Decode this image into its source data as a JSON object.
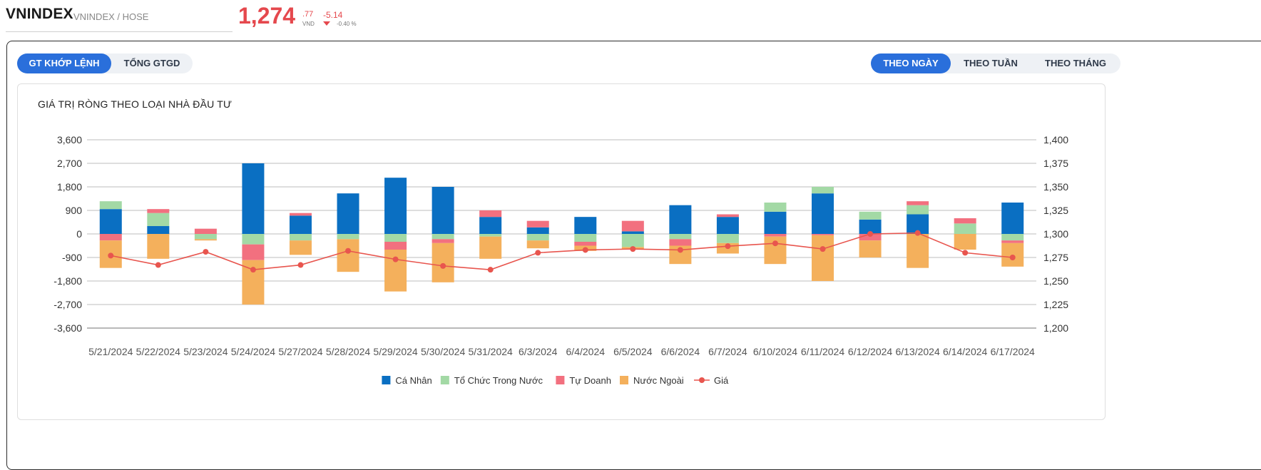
{
  "header": {
    "symbol": "VNINDEX",
    "subtitle": "VNINDEX / HOSE",
    "price_int": "1,274",
    "price_dec": ".77",
    "currency": "VND",
    "change": "-5.14",
    "change_pct": "-0.40 %",
    "colors": {
      "down": "#e5484d"
    }
  },
  "tabs_left": [
    {
      "label": "GT KHỚP LỆNH",
      "active": true
    },
    {
      "label": "TỔNG GTGD",
      "active": false
    }
  ],
  "tabs_right": [
    {
      "label": "THEO NGÀY",
      "active": true
    },
    {
      "label": "THEO TUẦN",
      "active": false
    },
    {
      "label": "THEO THÁNG",
      "active": false
    }
  ],
  "card": {
    "title": "GIÁ TRỊ RÒNG THEO LOẠI NHÀ ĐẦU TƯ"
  },
  "chart_data": {
    "type": "bar",
    "stacked": true,
    "title": "GIÁ TRỊ RÒNG THEO LOẠI NHÀ ĐẦU TƯ",
    "categories": [
      "5/21/2024",
      "5/22/2024",
      "5/23/2024",
      "5/24/2024",
      "5/27/2024",
      "5/28/2024",
      "5/29/2024",
      "5/30/2024",
      "5/31/2024",
      "6/3/2024",
      "6/4/2024",
      "6/5/2024",
      "6/6/2024",
      "6/7/2024",
      "6/10/2024",
      "6/11/2024",
      "6/12/2024",
      "6/13/2024",
      "6/14/2024",
      "6/17/2024"
    ],
    "y_left": {
      "ticks": [
        3600,
        2700,
        1800,
        900,
        0,
        -900,
        -1800,
        -2700,
        -3600
      ],
      "tick_labels": [
        "3,600",
        "2,700",
        "1,800",
        "900",
        "0",
        "-900",
        "-1,800",
        "-2,700",
        "-3,600"
      ],
      "ylim": [
        -3600,
        3600
      ]
    },
    "y_right": {
      "ticks": [
        1400,
        1375,
        1350,
        1325,
        1300,
        1275,
        1250,
        1225,
        1200
      ],
      "tick_labels": [
        "1,400",
        "1,375",
        "1,350",
        "1,325",
        "1,300",
        "1,275",
        "1,250",
        "1,225",
        "1,200"
      ],
      "ylim": [
        1200,
        1400
      ]
    },
    "grid": true,
    "legend_position": "bottom-center",
    "series": [
      {
        "name": "Cá Nhân",
        "color": "#0a6fc2",
        "values": [
          950,
          300,
          0,
          2700,
          700,
          1550,
          2150,
          1800,
          650,
          250,
          650,
          100,
          1100,
          650,
          850,
          1550,
          550,
          750,
          0,
          1200
        ]
      },
      {
        "name": "Tổ Chức Trong Nước",
        "color": "#a3d9a5",
        "values": [
          300,
          500,
          -200,
          -400,
          -250,
          -200,
          -300,
          -200,
          -100,
          -250,
          -300,
          -500,
          -200,
          -350,
          350,
          250,
          300,
          350,
          400,
          -250
        ]
      },
      {
        "name": "Tự Doanh",
        "color": "#f2707f",
        "values": [
          -250,
          150,
          200,
          -600,
          100,
          0,
          -300,
          -150,
          250,
          250,
          -150,
          400,
          -250,
          100,
          -100,
          -50,
          -250,
          150,
          200,
          -100
        ]
      },
      {
        "name": "Nước Ngoài",
        "color": "#f4b05c",
        "values": [
          -1050,
          -950,
          -50,
          -1700,
          -550,
          -1250,
          -1600,
          -1500,
          -850,
          -300,
          -200,
          -100,
          -700,
          -400,
          -1050,
          -1750,
          -650,
          -1300,
          -600,
          -900
        ]
      },
      {
        "name": "Giá",
        "type": "line",
        "axis": "right",
        "color": "#e8554e",
        "values": [
          1277,
          1267,
          1281,
          1262,
          1267,
          1282,
          1273,
          1266,
          1262,
          1280,
          1283,
          1284,
          1283,
          1287,
          1290,
          1284,
          1300,
          1301,
          1280,
          1275
        ]
      }
    ]
  }
}
